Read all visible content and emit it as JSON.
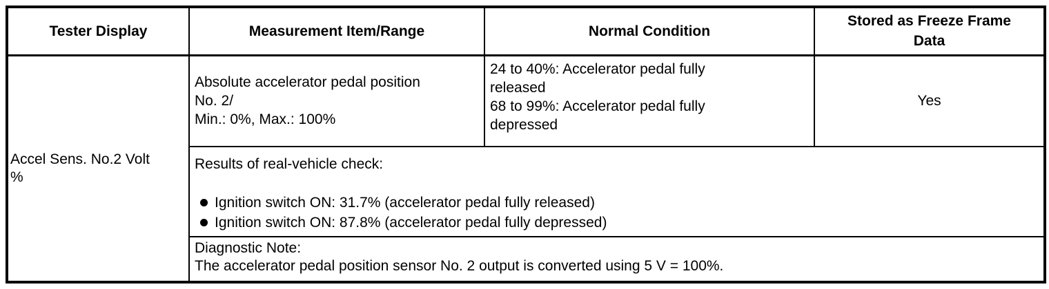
{
  "colors": {
    "background": "#ffffff",
    "border": "#000000",
    "text": "#000000"
  },
  "table": {
    "headers": [
      "Tester Display",
      "Measurement Item/Range",
      "Normal Condition",
      "Stored as Freeze Frame\nData"
    ],
    "row": {
      "tester_display": "Accel Sens. No.2 Volt\n%",
      "measurement_item_range": "Absolute accelerator pedal position\nNo. 2/\nMin.: 0%, Max.: 100%",
      "normal_condition": "24 to 40%: Accelerator pedal fully\nreleased\n68 to 99%: Accelerator pedal fully\ndepressed",
      "stored_as_freeze_frame": "Yes",
      "results": {
        "title": "Results of real-vehicle check:",
        "items": [
          "Ignition switch ON: 31.7% (accelerator pedal fully released)",
          "Ignition switch ON: 87.8% (accelerator pedal fully depressed)"
        ]
      },
      "diagnostic_note": {
        "title": "Diagnostic Note:",
        "text": "The accelerator pedal position sensor No. 2 output is converted using 5 V = 100%."
      }
    }
  }
}
